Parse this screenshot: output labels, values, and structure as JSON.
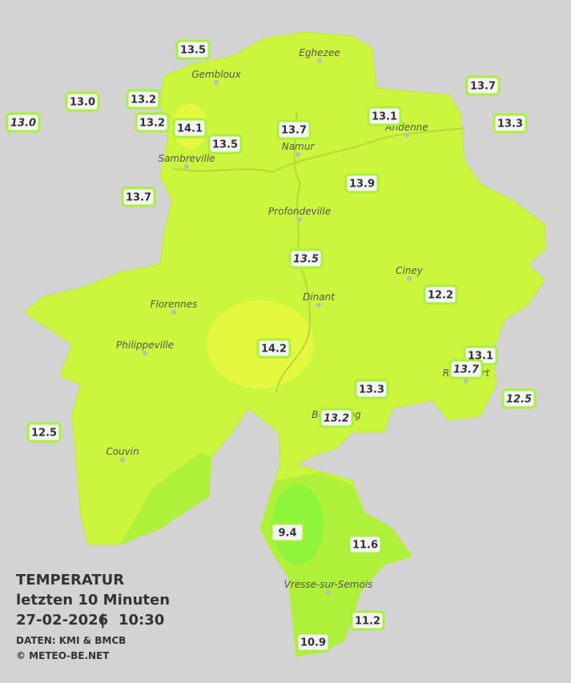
{
  "legend": {
    "title": "TEMPERATUR",
    "subtitle": "letzten 10 Minuten",
    "date": "27-02-2026",
    "separator": "|",
    "time": "10:30",
    "source": "DATEN: KMI & BMCB",
    "copyright": "© METEO-BE.NET"
  },
  "cities": [
    "Eghezee",
    "Gembloux",
    "Andenne",
    "Namur",
    "Sambreville",
    "Profondeville",
    "Ciney",
    "Dinant",
    "Florennes",
    "Philippeville",
    "Rochefort",
    "Beauraing",
    "Couvin",
    "Vresse-sur-Semois"
  ],
  "stations": [
    {
      "label": "13.5",
      "italic": false
    },
    {
      "label": "13.0",
      "italic": false
    },
    {
      "label": "13.2",
      "italic": false
    },
    {
      "label": "13.0",
      "italic": true
    },
    {
      "label": "13.2",
      "italic": false
    },
    {
      "label": "14.1",
      "italic": false
    },
    {
      "label": "13.5",
      "italic": false
    },
    {
      "label": "13.7",
      "italic": false
    },
    {
      "label": "13.1",
      "italic": false
    },
    {
      "label": "13.7",
      "italic": false
    },
    {
      "label": "13.3",
      "italic": false
    },
    {
      "label": "13.7",
      "italic": false
    },
    {
      "label": "13.9",
      "italic": false
    },
    {
      "label": "13.5",
      "italic": true
    },
    {
      "label": "12.2",
      "italic": false
    },
    {
      "label": "14.2",
      "italic": false
    },
    {
      "label": "13.1",
      "italic": false
    },
    {
      "label": "13.7",
      "italic": true
    },
    {
      "label": "13.3",
      "italic": false
    },
    {
      "label": "13.2",
      "italic": true
    },
    {
      "label": "12.5",
      "italic": true
    },
    {
      "label": "12.5",
      "italic": false
    },
    {
      "label": "9.4",
      "italic": false
    },
    {
      "label": "11.6",
      "italic": false
    },
    {
      "label": "11.2",
      "italic": false
    },
    {
      "label": "10.9",
      "italic": false
    }
  ]
}
